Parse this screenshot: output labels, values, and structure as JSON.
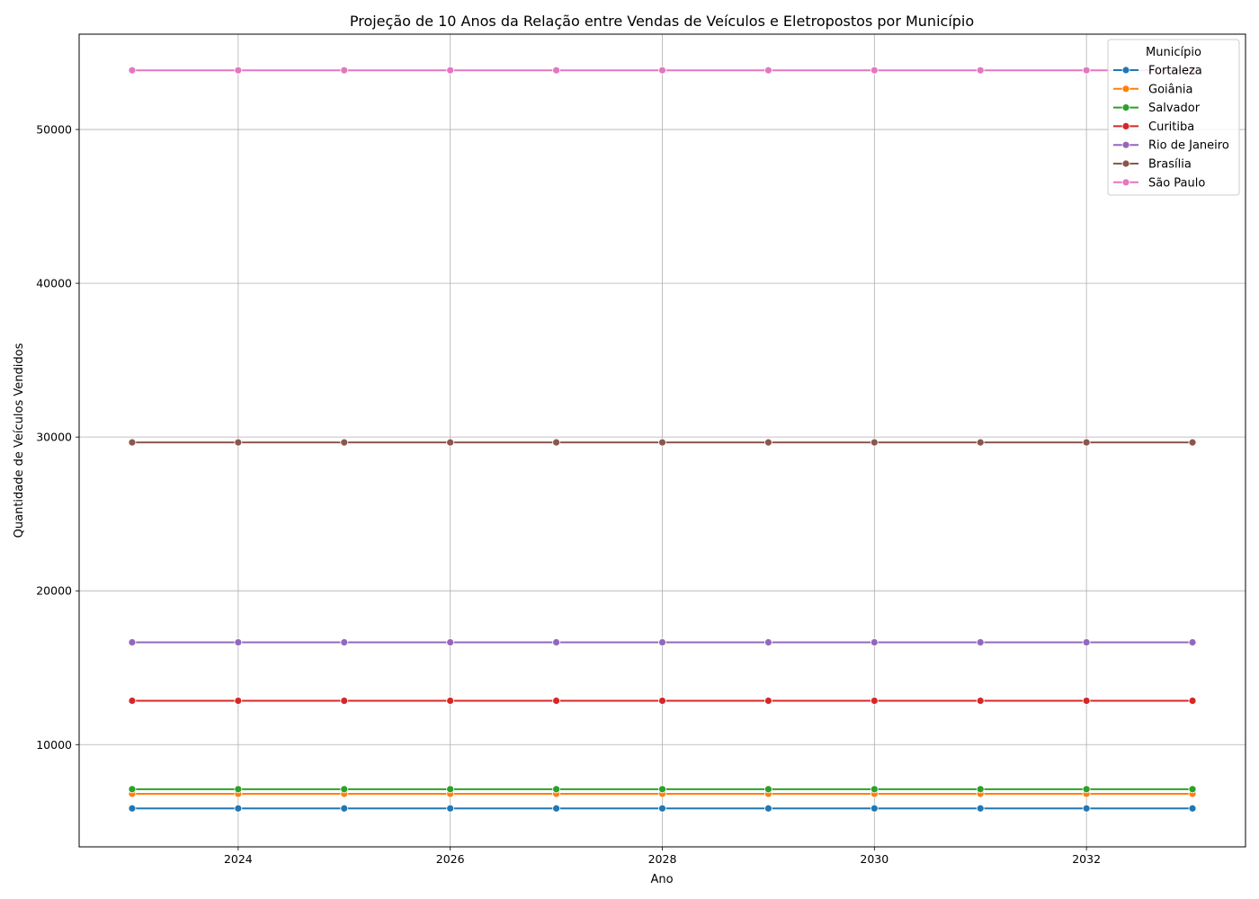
{
  "chart_data": {
    "type": "line",
    "title": "Projeção de 10 Anos da Relação entre Vendas de Veículos e Eletropostos por Município",
    "xlabel": "Ano",
    "ylabel": "Quantidade de Veículos Vendidos",
    "x": [
      2023,
      2024,
      2025,
      2026,
      2027,
      2028,
      2029,
      2030,
      2031,
      2032,
      2033
    ],
    "xlim": [
      2022.5,
      2033.5
    ],
    "ylim": [
      3350,
      56200
    ],
    "xticks": [
      2024,
      2026,
      2028,
      2030,
      2032
    ],
    "yticks": [
      10000,
      20000,
      30000,
      40000,
      50000
    ],
    "grid": true,
    "legend_title": "Município",
    "legend_position": "top-right",
    "series": [
      {
        "name": "Fortaleza",
        "color": "#1f77b4",
        "values": [
          5850,
          5850,
          5850,
          5850,
          5850,
          5850,
          5850,
          5850,
          5850,
          5850,
          5850
        ]
      },
      {
        "name": "Goiânia",
        "color": "#ff7f0e",
        "values": [
          6800,
          6800,
          6800,
          6800,
          6800,
          6800,
          6800,
          6800,
          6800,
          6800,
          6800
        ]
      },
      {
        "name": "Salvador",
        "color": "#2ca02c",
        "values": [
          7100,
          7100,
          7100,
          7100,
          7100,
          7100,
          7100,
          7100,
          7100,
          7100,
          7100
        ]
      },
      {
        "name": "Curitiba",
        "color": "#d62728",
        "values": [
          12850,
          12850,
          12850,
          12850,
          12850,
          12850,
          12850,
          12850,
          12850,
          12850,
          12850
        ]
      },
      {
        "name": "Rio de Janeiro",
        "color": "#9467bd",
        "values": [
          16650,
          16650,
          16650,
          16650,
          16650,
          16650,
          16650,
          16650,
          16650,
          16650,
          16650
        ]
      },
      {
        "name": "Brasília",
        "color": "#8c564b",
        "values": [
          29650,
          29650,
          29650,
          29650,
          29650,
          29650,
          29650,
          29650,
          29650,
          29650,
          29650
        ]
      },
      {
        "name": "São Paulo",
        "color": "#e377c2",
        "values": [
          53850,
          53850,
          53850,
          53850,
          53850,
          53850,
          53850,
          53850,
          53850,
          53850,
          53850
        ]
      }
    ]
  }
}
